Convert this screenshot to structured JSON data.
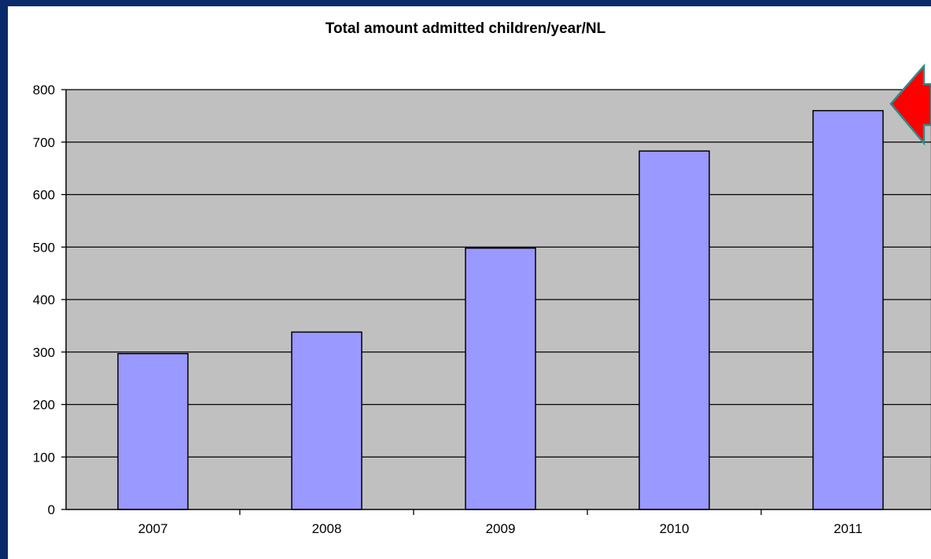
{
  "chart_data": {
    "type": "bar",
    "title": "Total amount admitted children/year/NL",
    "categories": [
      "2007",
      "2008",
      "2009",
      "2010",
      "2011"
    ],
    "values": [
      297,
      338,
      498,
      683,
      760
    ],
    "ylim": [
      0,
      800
    ],
    "yticks": [
      0,
      100,
      200,
      300,
      400,
      500,
      600,
      700,
      800
    ],
    "xlabel": "",
    "ylabel": "",
    "grid": true,
    "colors": {
      "plot_background": "#c0c0c0",
      "bar_fill": "#9999ff",
      "bar_stroke": "#000000",
      "frame": "#0a2a6b"
    }
  },
  "annotations": {
    "arrow": {
      "icon": "arrow-left-icon",
      "fill": "#ff0000",
      "stroke": "#2e8b8b"
    }
  }
}
